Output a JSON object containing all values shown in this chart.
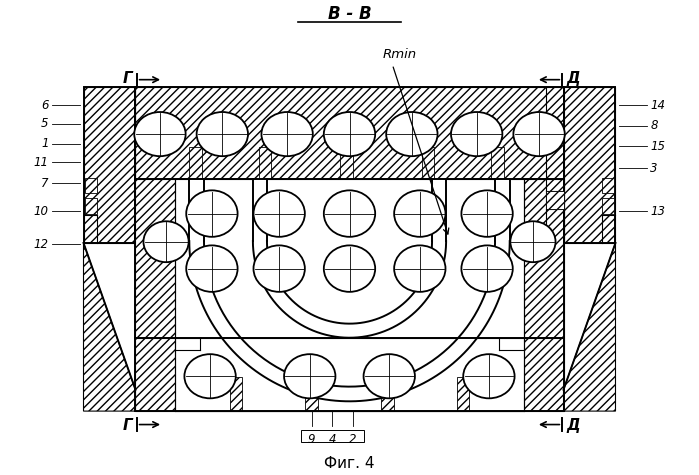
{
  "title": "В - В",
  "caption": "Фиг. 4",
  "bg_color": "#ffffff",
  "line_color": "#000000",
  "label_G": "Г",
  "label_D": "Д",
  "label_Rmin": "Rmin",
  "fig_width": 6.99,
  "fig_height": 4.75,
  "labels_left": [
    [
      "6",
      0.08,
      5.55
    ],
    [
      "5",
      0.08,
      5.25
    ],
    [
      "1",
      0.08,
      4.92
    ],
    [
      "11",
      0.08,
      4.62
    ],
    [
      "7",
      0.08,
      4.28
    ],
    [
      "10",
      0.08,
      3.82
    ],
    [
      "12",
      0.08,
      3.28
    ]
  ],
  "labels_right": [
    [
      "14",
      9.92,
      5.55
    ],
    [
      "8",
      9.92,
      5.22
    ],
    [
      "15",
      9.92,
      4.88
    ],
    [
      "3",
      9.92,
      4.52
    ],
    [
      "13",
      9.92,
      3.82
    ]
  ],
  "labels_bottom": [
    [
      "9",
      4.38,
      0.22
    ],
    [
      "4",
      4.72,
      0.22
    ],
    [
      "2",
      5.05,
      0.22
    ]
  ]
}
